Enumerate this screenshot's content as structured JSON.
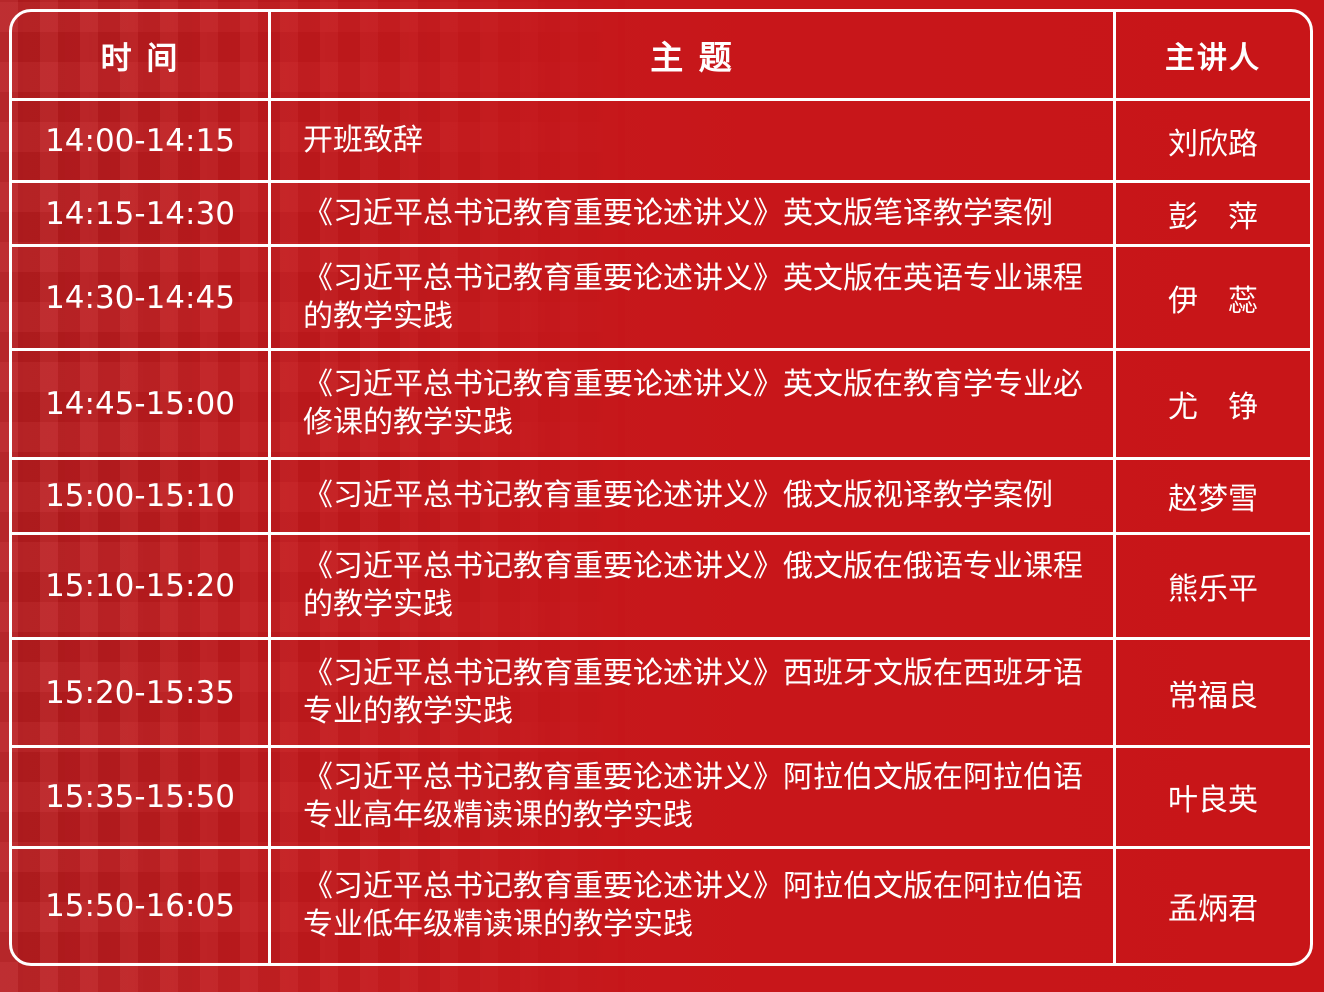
{
  "header": {
    "time": "时 间",
    "topic": "主 题",
    "speaker": "主讲人"
  },
  "rows": [
    {
      "time": "14:00-14:15",
      "topic": "开班致辞",
      "speaker": "刘欣路"
    },
    {
      "time": "14:15-14:30",
      "topic": "《习近平总书记教育重要论述讲义》英文版笔译教学案例",
      "speaker": "彭　萍"
    },
    {
      "time": "14:30-14:45",
      "topic": "《习近平总书记教育重要论述讲义》英文版在英语专业课程的教学实践",
      "speaker": "伊　蕊"
    },
    {
      "time": "14:45-15:00",
      "topic": "《习近平总书记教育重要论述讲义》英文版在教育学专业必修课的教学实践",
      "speaker": "尤　铮"
    },
    {
      "time": "15:00-15:10",
      "topic": "《习近平总书记教育重要论述讲义》俄文版视译教学案例",
      "speaker": "赵梦雪"
    },
    {
      "time": "15:10-15:20",
      "topic": "《习近平总书记教育重要论述讲义》俄文版在俄语专业课程的教学实践",
      "speaker": "熊乐平"
    },
    {
      "time": "15:20-15:35",
      "topic": "《习近平总书记教育重要论述讲义》西班牙文版在西班牙语专业的教学实践",
      "speaker": "常福良"
    },
    {
      "time": "15:35-15:50",
      "topic": "《习近平总书记教育重要论述讲义》阿拉伯文版在阿拉伯语专业高年级精读课的教学实践",
      "speaker": "叶良英"
    },
    {
      "time": "15:50-16:05",
      "topic": "《习近平总书记教育重要论述讲义》阿拉伯文版在阿拉伯语专业低年级精读课的教学实践",
      "speaker": "孟炳君"
    }
  ],
  "colors": {
    "background": "#c8161a",
    "lines": "#ffffff",
    "text": "#ffffff"
  }
}
